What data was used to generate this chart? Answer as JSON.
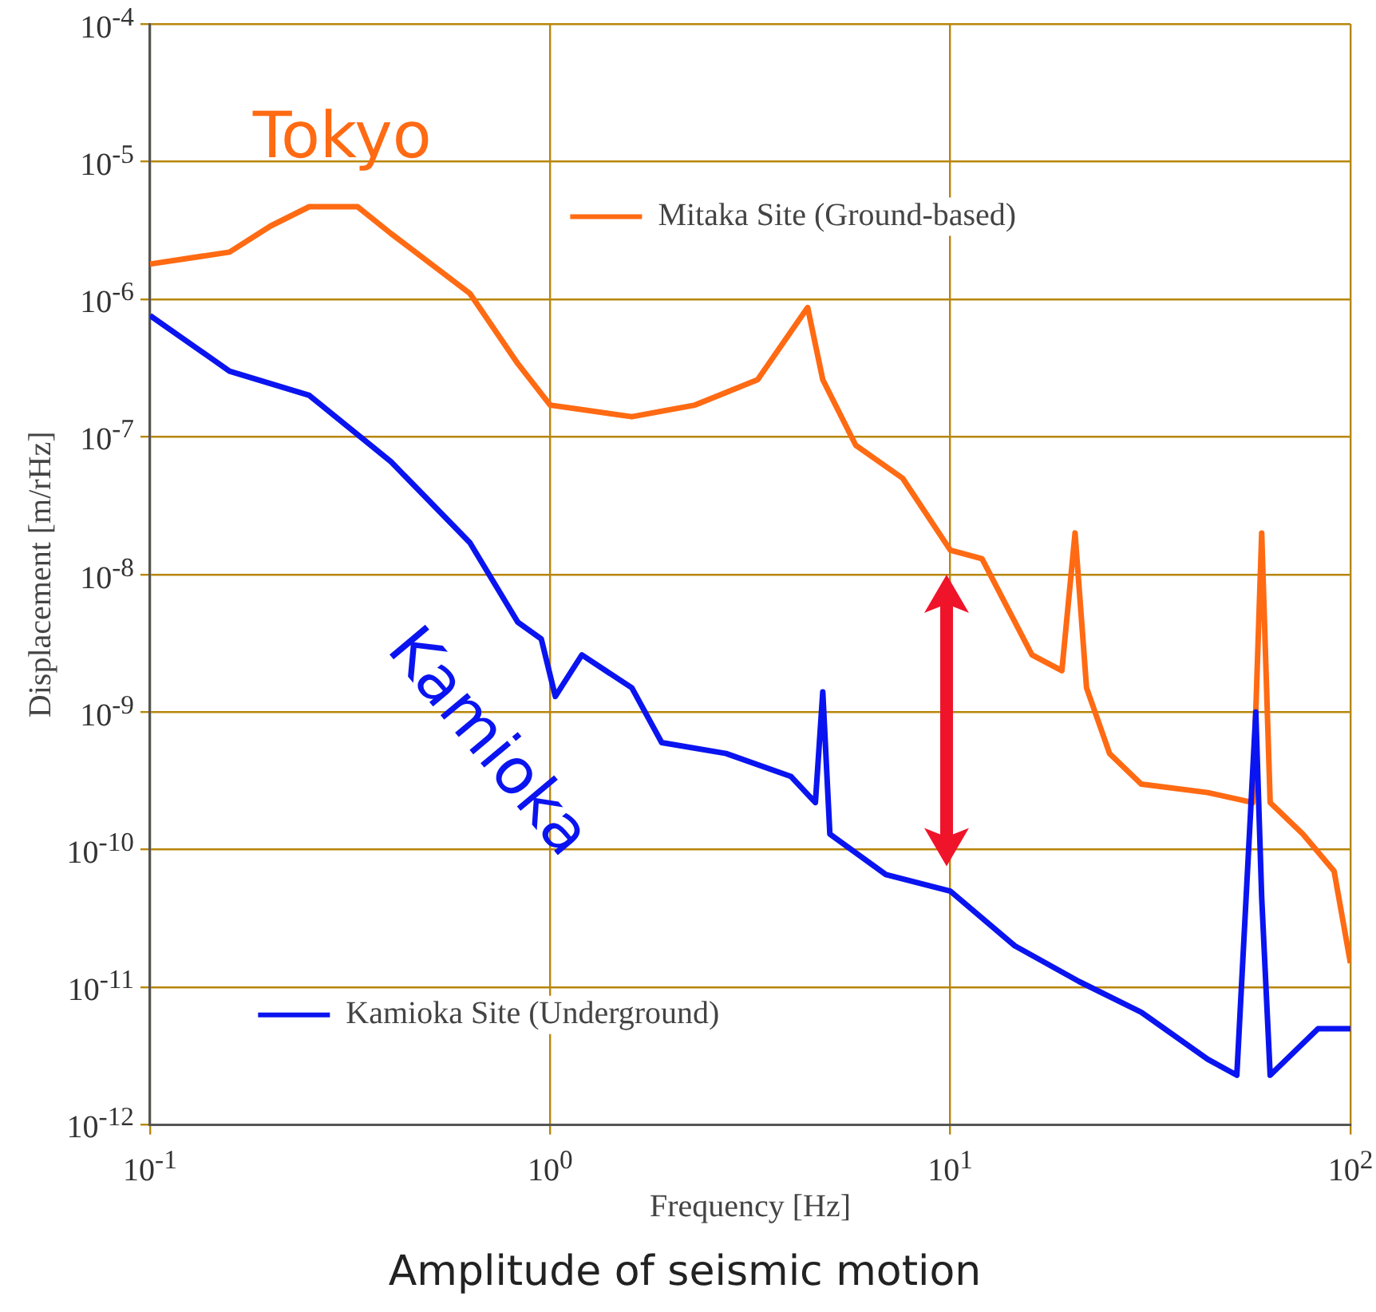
{
  "chart_data": {
    "type": "line",
    "title": "Amplitude of seismic motion",
    "xlabel": "Frequency [Hz]",
    "ylabel": "Displacement [m/rHz]",
    "log": "xy",
    "grid": true,
    "legend": "bottom left",
    "marker": "none",
    "line_style": "solid",
    "xlim": [
      0.1,
      100
    ],
    "ylim": [
      1e-12,
      0.0001
    ],
    "xticks": [
      {
        "value": 0.1,
        "label": "10$^{-1}$"
      },
      {
        "value": 1,
        "label": "10$^{0}$"
      },
      {
        "value": 10,
        "label": "10$^{1}$"
      },
      {
        "value": 100,
        "label": "10$^{2}$"
      }
    ],
    "yticks": [
      {
        "value": 1e-12,
        "label": "10$^{-12}$"
      },
      {
        "value": 1e-11,
        "label": "10$^{-11}$"
      },
      {
        "value": 1e-10,
        "label": "10$^{-10}$"
      },
      {
        "value": 1e-09,
        "label": "10$^{-9}$"
      },
      {
        "value": 1e-08,
        "label": "10$^{-8}$"
      },
      {
        "value": 1e-07,
        "label": "10$^{-7}$"
      },
      {
        "value": 1e-06,
        "label": "10$^{-6}$"
      },
      {
        "value": 1e-05,
        "label": "10$^{-5}$"
      },
      {
        "value": 0.0001,
        "label": "10$^{-4}$"
      }
    ],
    "series": [
      {
        "name": "Mitaka Site (Ground-based)",
        "color": "#ff6a13",
        "x": [
          0.1,
          0.158,
          0.2,
          0.25,
          0.33,
          0.4,
          0.63,
          0.83,
          1,
          1.6,
          2.3,
          3.3,
          4.4,
          4.8,
          5.8,
          7.6,
          10,
          12,
          16,
          19,
          20.5,
          21.9,
          25,
          30,
          44,
          57,
          60,
          63,
          76,
          91,
          100
        ],
        "values": [
          1.8e-06,
          2.2e-06,
          3.4e-06,
          4.7e-06,
          4.7e-06,
          3e-06,
          1.1e-06,
          3.4e-07,
          1.7e-07,
          1.4e-07,
          1.7e-07,
          2.6e-07,
          8.7e-07,
          2.6e-07,
          8.7e-08,
          5e-08,
          1.5e-08,
          1.3e-08,
          2.6e-09,
          2e-09,
          2e-08,
          1.5e-09,
          5e-10,
          3e-10,
          2.6e-10,
          2.2e-10,
          2e-08,
          2.2e-10,
          1.3e-10,
          7e-11,
          1.5e-11
        ]
      },
      {
        "name": "Kamioka Site (Underground)",
        "color": "#0a14f0",
        "x": [
          0.1,
          0.158,
          0.25,
          0.4,
          0.63,
          0.83,
          0.95,
          1.03,
          1.2,
          1.6,
          1.9,
          2.75,
          4,
          4.6,
          4.8,
          5,
          6.9,
          10,
          14.5,
          21,
          30,
          44,
          52,
          58,
          60,
          63,
          83,
          100
        ],
        "values": [
          7.6e-07,
          3e-07,
          2e-07,
          6.6e-08,
          1.7e-08,
          4.5e-09,
          3.4e-09,
          1.3e-09,
          2.6e-09,
          1.5e-09,
          6e-10,
          5e-10,
          3.4e-10,
          2.2e-10,
          1.4e-09,
          1.3e-10,
          6.6e-11,
          5e-11,
          2e-11,
          1.1e-11,
          6.6e-12,
          3e-12,
          2.3e-12,
          1e-09,
          4.5e-11,
          2.3e-12,
          5e-12,
          5e-12
        ]
      }
    ],
    "annotations": [
      "Tokyo",
      "Kamioka"
    ]
  }
}
